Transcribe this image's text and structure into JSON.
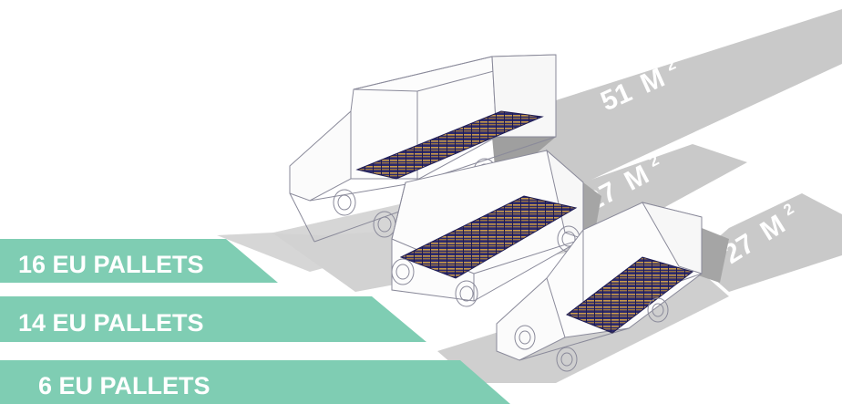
{
  "vehicles": [
    {
      "id": "large",
      "pallets_label": "16 EU PALLETS",
      "area_number": "51",
      "area_unit": "M",
      "area_exponent": "2"
    },
    {
      "id": "medium",
      "pallets_label": "14 EU PALLETS",
      "area_number": "27",
      "area_unit": "M",
      "area_exponent": "2"
    },
    {
      "id": "small",
      "pallets_label": "6 EU PALLETS",
      "area_number": "27",
      "area_unit": "M",
      "area_exponent": "2"
    }
  ],
  "colors": {
    "label_band": "#7fcdb3",
    "label_text": "#ffffff",
    "floor_band": "#c8c8c8",
    "floor_band_light": "#dcdcdc",
    "shadow": "#9a9a9a",
    "wireframe": "#8a8a9a",
    "pallet_dark": "#2c2a6e",
    "pallet_wood": "#c99a4a"
  }
}
